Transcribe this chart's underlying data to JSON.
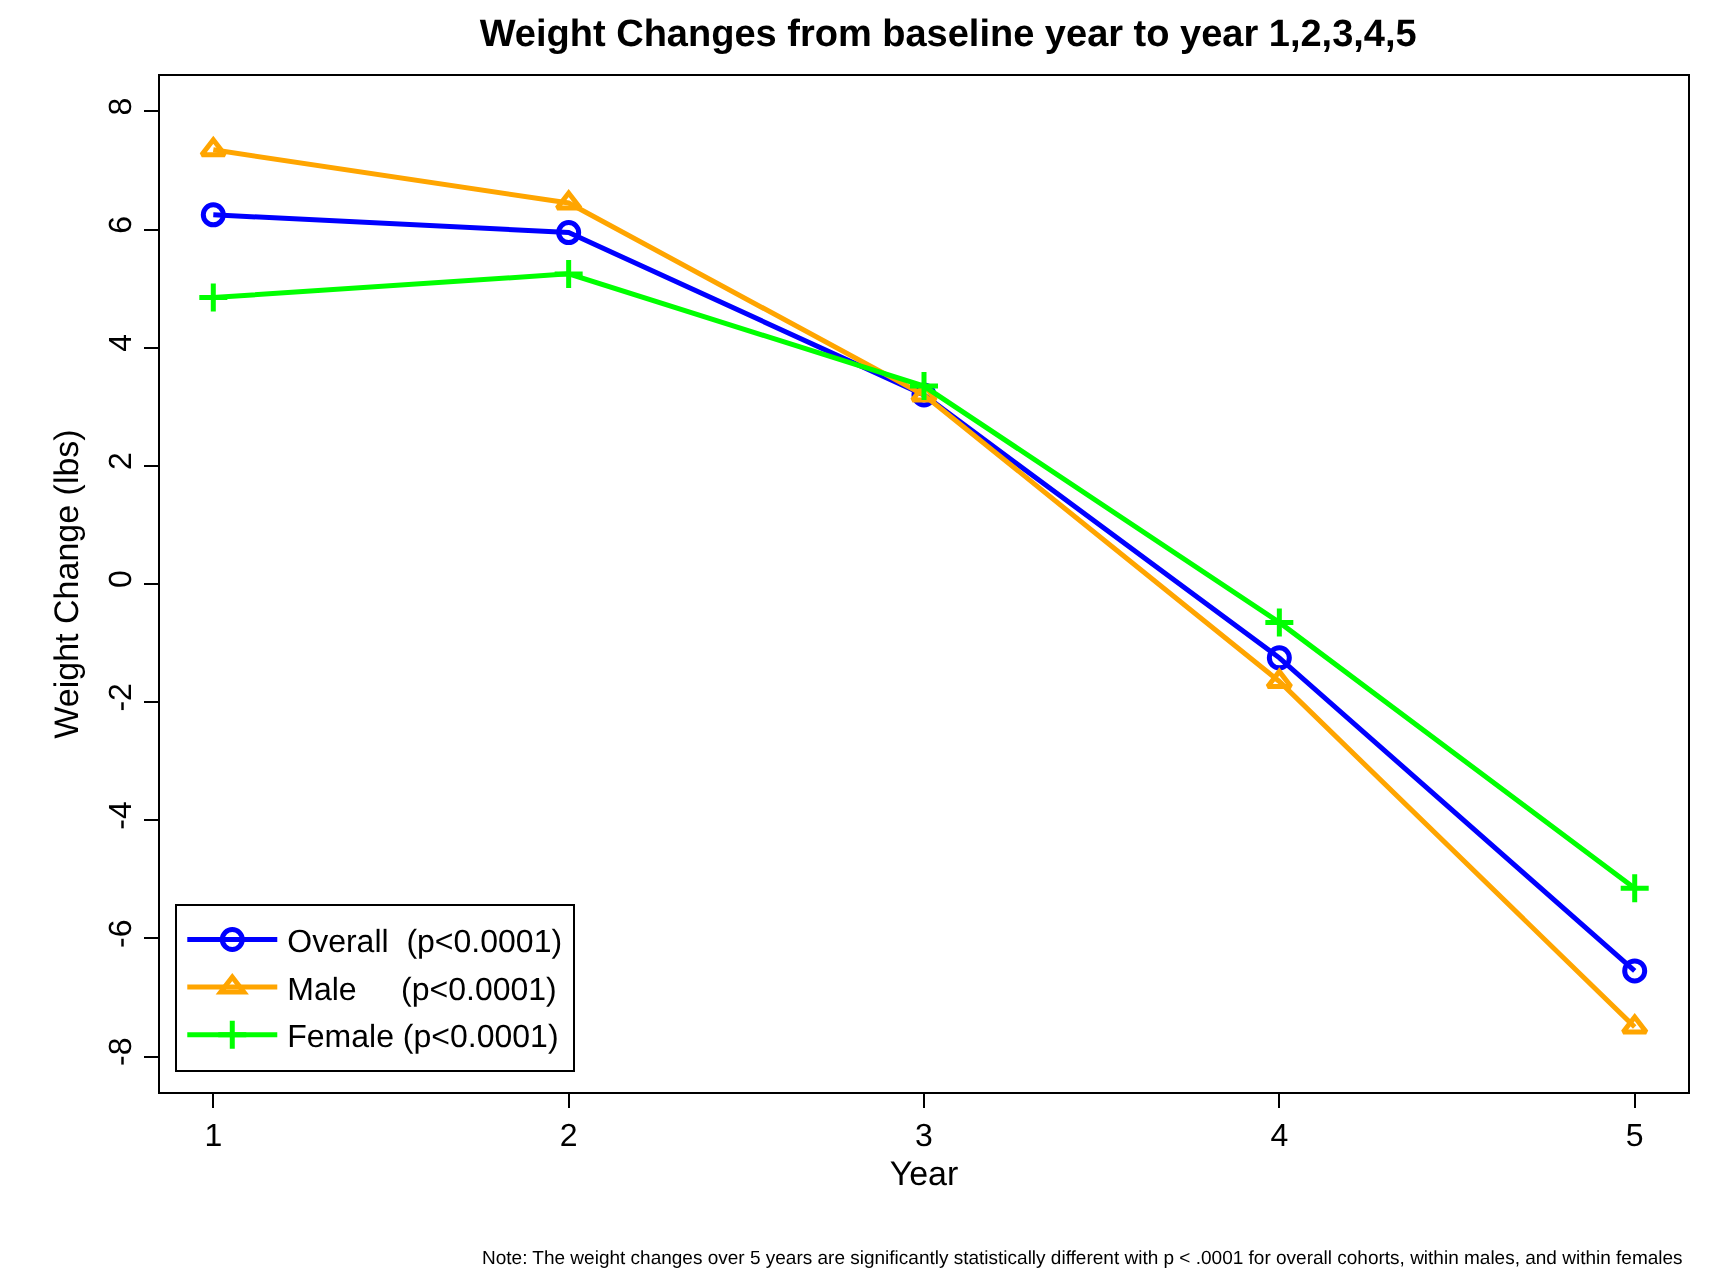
{
  "chart_data": {
    "type": "line",
    "title": "Weight Changes from baseline year to year 1,2,3,4,5",
    "xlabel": "Year",
    "ylabel": "Weight Change (lbs)",
    "x": [
      1,
      2,
      3,
      4,
      5
    ],
    "series": [
      {
        "name": "Overall  (p<0.0001)",
        "color": "#0000ff",
        "marker": "circle",
        "values": [
          6.25,
          5.95,
          3.2,
          -1.25,
          -6.55
        ]
      },
      {
        "name": "Male     (p<0.0001)",
        "color": "#ffa500",
        "marker": "triangle",
        "values": [
          7.35,
          6.45,
          3.2,
          -1.65,
          -7.5
        ]
      },
      {
        "name": "Female (p<0.0001)",
        "color": "#00ff00",
        "marker": "cross",
        "values": [
          4.85,
          5.25,
          3.35,
          -0.65,
          -5.15
        ]
      }
    ],
    "xlim": [
      0.85,
      5.15
    ],
    "ylim": [
      -8.6,
      8.6
    ],
    "xticks": [
      1,
      2,
      3,
      4,
      5
    ],
    "yticks": [
      -8,
      -6,
      -4,
      -2,
      0,
      2,
      4,
      6,
      8
    ],
    "legend": "bottom left",
    "line_style": "solid",
    "annotations": [
      "Note: The weight changes over 5 years are significantly statistically different with p < .0001 for overall cohorts, within males, and within females"
    ]
  }
}
